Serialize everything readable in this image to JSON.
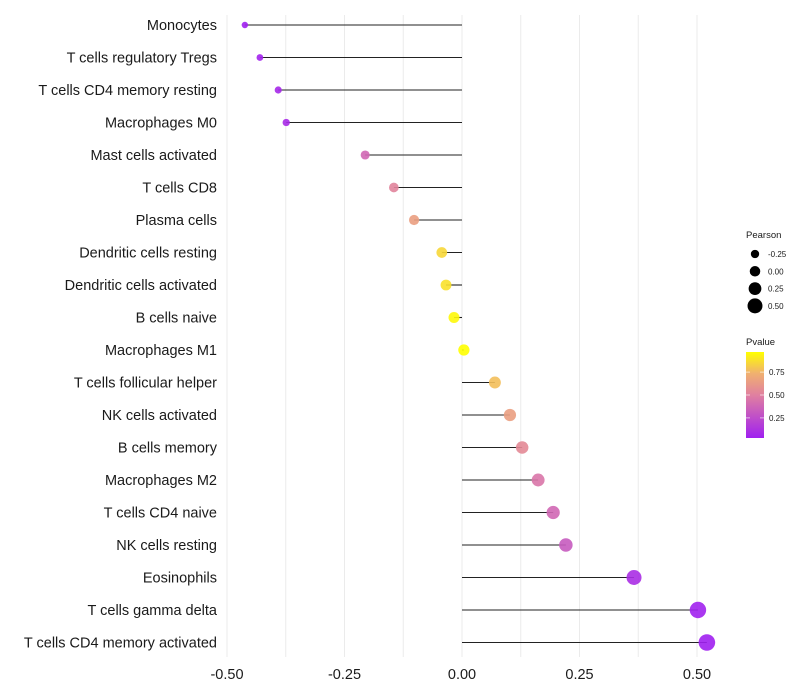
{
  "chart_data": {
    "type": "scatter",
    "subtype": "lollipop",
    "title": "",
    "xlabel": "",
    "ylabel": "",
    "xlim": [
      -0.52,
      0.55
    ],
    "xticks": [
      -0.5,
      -0.25,
      0,
      0.25,
      0.5
    ],
    "xtick_labels": [
      "-0.50",
      "-0.25",
      "0.00",
      "0.25",
      "0.50"
    ],
    "grid": true,
    "categories": [
      "Monocytes",
      "T cells regulatory  Tregs ",
      "T cells CD4 memory resting",
      "Macrophages M0",
      "Mast cells activated",
      "T cells CD8",
      "Plasma cells",
      "Dendritic cells resting",
      "Dendritic cells activated",
      "B cells naive",
      "Macrophages M1",
      "T cells follicular helper",
      "NK cells activated",
      "B cells memory",
      "Macrophages M2",
      "T cells CD4 naive",
      "NK cells resting",
      "Eosinophils",
      "T cells gamma delta",
      "T cells CD4 memory activated"
    ],
    "values": [
      -0.462,
      -0.43,
      -0.391,
      -0.374,
      -0.206,
      -0.145,
      -0.102,
      -0.043,
      -0.034,
      -0.017,
      0.004,
      0.07,
      0.102,
      0.128,
      0.162,
      0.194,
      0.221,
      0.366,
      0.502,
      0.521
    ],
    "pvalues": [
      0.03,
      0.05,
      0.07,
      0.08,
      0.38,
      0.52,
      0.65,
      0.85,
      0.88,
      0.95,
      0.97,
      0.78,
      0.65,
      0.55,
      0.45,
      0.38,
      0.32,
      0.1,
      0.04,
      0.03
    ],
    "legend": {
      "placement": "right",
      "size_legend": {
        "title": "Pearson",
        "labels": [
          "-0.25",
          "0.00",
          "0.25",
          "0.50"
        ],
        "values": [
          -0.25,
          0.0,
          0.25,
          0.5
        ]
      },
      "color_legend": {
        "title": "Pvalue",
        "labels": [
          "0.75",
          "0.50",
          "0.25"
        ],
        "values": [
          0.75,
          0.5,
          0.25
        ],
        "range": [
          0.03,
          0.97
        ],
        "low_color": "#a020f0",
        "high_color": "#ffff00"
      }
    }
  }
}
